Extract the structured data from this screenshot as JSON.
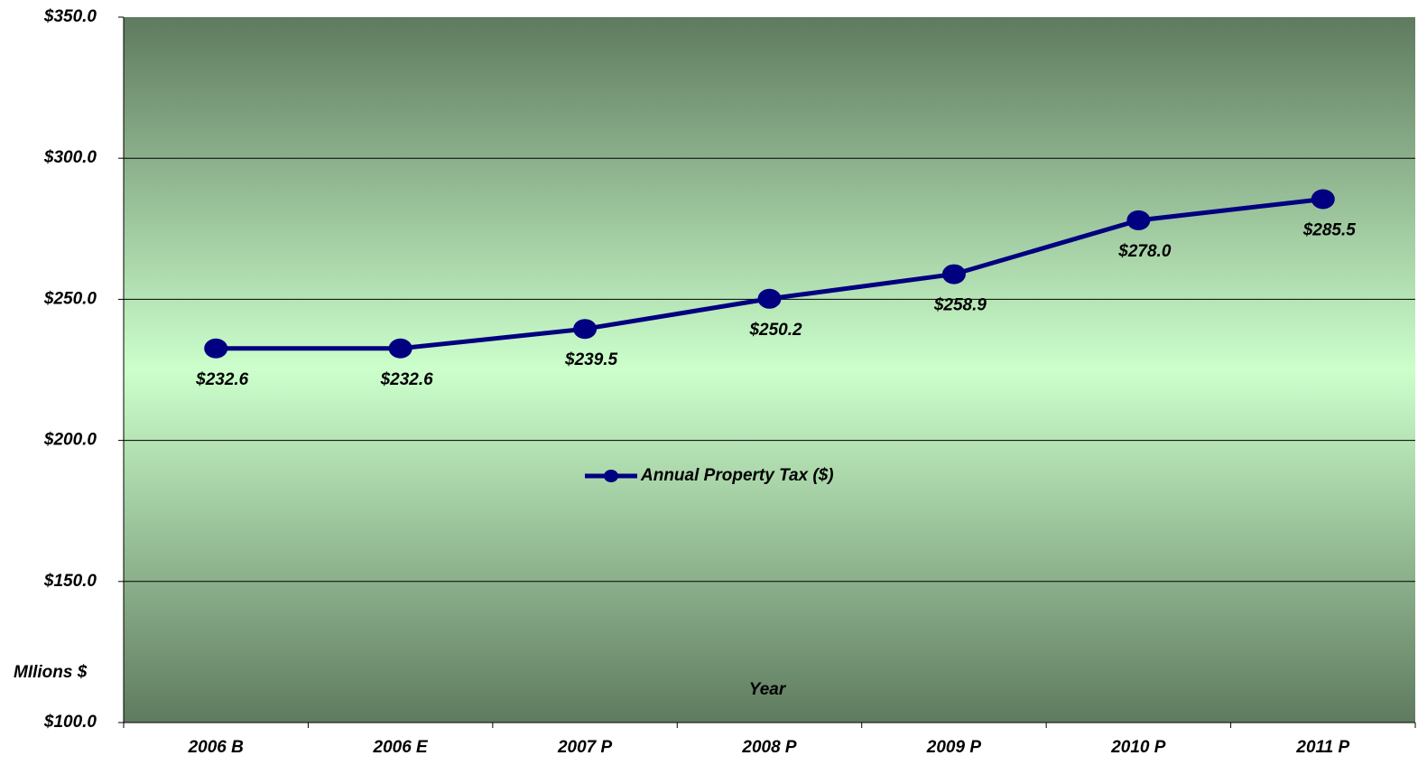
{
  "chart_data": {
    "type": "line",
    "categories": [
      "2006 B",
      "2006 E",
      "2007 P",
      "2008 P",
      "2009 P",
      "2010 P",
      "2011 P"
    ],
    "series": [
      {
        "name": "Annual Property Tax ($)",
        "color": "#000080",
        "values": [
          232.6,
          232.6,
          239.5,
          250.2,
          258.9,
          278.0,
          285.5
        ],
        "value_labels": [
          "$232.6",
          "$232.6",
          "$239.5",
          "$250.2",
          "$258.9",
          "$278.0",
          "$285.5"
        ]
      }
    ],
    "xlabel": "Year",
    "ylabel": "MIlions $",
    "ylim": [
      100,
      350
    ],
    "yticks": [
      {
        "value": 100,
        "label": "$100.0"
      },
      {
        "value": 150,
        "label": "$150.0"
      },
      {
        "value": 200,
        "label": "$200.0"
      },
      {
        "value": 250,
        "label": "$250.0"
      },
      {
        "value": 300,
        "label": "$300.0"
      },
      {
        "value": 350,
        "label": "$350.0"
      }
    ],
    "grid": true,
    "legend": "center"
  }
}
